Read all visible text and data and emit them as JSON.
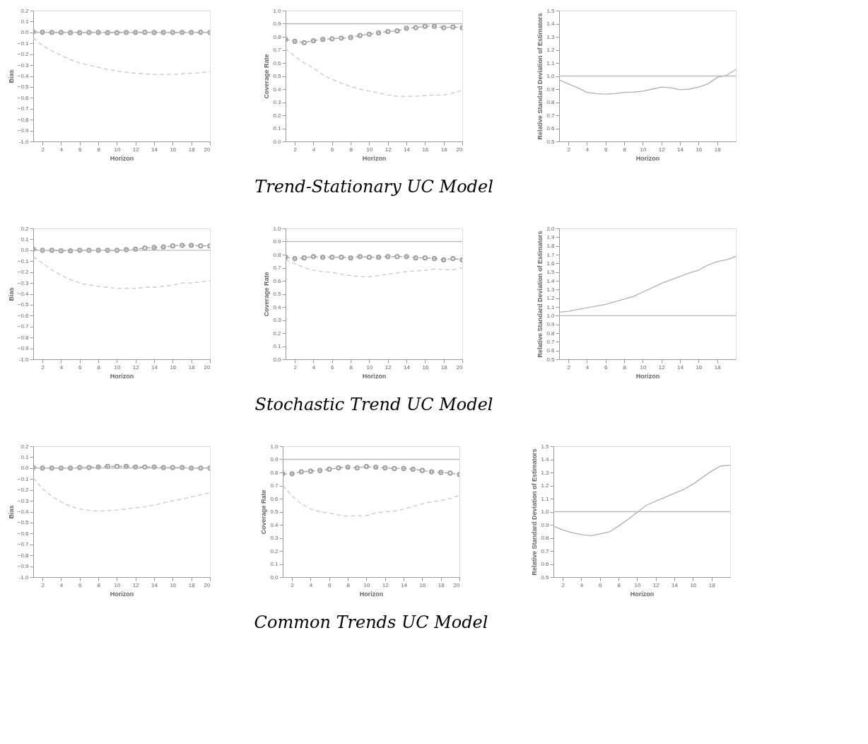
{
  "chart_data": [
    {
      "type": "line",
      "ylabel": "Bias",
      "xlabel": "Horizon",
      "x": [
        1,
        2,
        3,
        4,
        5,
        6,
        7,
        8,
        9,
        10,
        11,
        12,
        13,
        14,
        15,
        16,
        17,
        18,
        19,
        20
      ],
      "xlim": [
        1,
        20
      ],
      "xticks": [
        2,
        4,
        6,
        8,
        10,
        12,
        14,
        16,
        18,
        20
      ],
      "ylim": [
        -1.0,
        0.2
      ],
      "yticks": [
        {
          "value": -1,
          "label": "-1.0"
        },
        -0.9,
        -0.8,
        -0.7,
        -0.6,
        -0.5,
        -0.4,
        -0.3,
        -0.2,
        -0.1,
        {
          "value": 0,
          "label": "0.0"
        },
        0.1,
        0.2
      ],
      "grid": false,
      "series": [
        {
          "color": "#a0a0a0",
          "line_style": "dashed",
          "marker": "circle",
          "values": [
            0.005,
            0.002,
            0,
            0,
            -0.002,
            -0.002,
            0,
            0,
            -0.002,
            -0.002,
            0,
            0,
            0.001,
            -0.001,
            0,
            0,
            0,
            0,
            0.002,
            0
          ]
        },
        {
          "color": "#c8c8c8",
          "line_style": "dashed",
          "marker": "none",
          "values": [
            -0.05,
            -0.12,
            -0.17,
            -0.21,
            -0.25,
            -0.28,
            -0.3,
            -0.32,
            -0.34,
            -0.355,
            -0.365,
            -0.375,
            -0.38,
            -0.385,
            -0.385,
            -0.385,
            -0.38,
            -0.375,
            -0.37,
            -0.36
          ]
        }
      ],
      "ref_lines": [
        {
          "axis": "y",
          "value": 0,
          "color": "#b8b8b8",
          "line_style": "solid"
        }
      ]
    },
    {
      "type": "line",
      "title": "Trend-Stationary UC Model",
      "ylabel": "Coverage Rate",
      "xlabel": "Horizon",
      "x": [
        1,
        2,
        3,
        4,
        5,
        6,
        7,
        8,
        9,
        10,
        11,
        12,
        13,
        14,
        15,
        16,
        17,
        18,
        19,
        20
      ],
      "xlim": [
        1,
        20
      ],
      "xticks": [
        2,
        4,
        6,
        8,
        10,
        12,
        14,
        16,
        18,
        20
      ],
      "ylim": [
        0,
        1.0
      ],
      "yticks": [
        {
          "value": 0,
          "label": "0.0"
        },
        0.1,
        0.2,
        0.3,
        0.4,
        0.5,
        0.6,
        0.7,
        0.8,
        0.9,
        {
          "value": 1,
          "label": "1.0"
        }
      ],
      "grid": false,
      "series": [
        {
          "color": "#a0a0a0",
          "line_style": "dashed",
          "marker": "circle",
          "values": [
            0.78,
            0.765,
            0.755,
            0.77,
            0.78,
            0.785,
            0.79,
            0.795,
            0.81,
            0.82,
            0.83,
            0.84,
            0.845,
            0.865,
            0.87,
            0.88,
            0.88,
            0.87,
            0.875,
            0.87
          ]
        },
        {
          "color": "#c8c8c8",
          "line_style": "dashed",
          "marker": "none",
          "values": [
            0.71,
            0.65,
            0.6,
            0.56,
            0.51,
            0.475,
            0.445,
            0.42,
            0.4,
            0.385,
            0.37,
            0.355,
            0.345,
            0.345,
            0.345,
            0.35,
            0.355,
            0.355,
            0.37,
            0.39
          ]
        }
      ],
      "ref_lines": [
        {
          "axis": "y",
          "value": 0.9,
          "color": "#b8b8b8",
          "line_style": "solid"
        }
      ]
    },
    {
      "type": "line",
      "ylabel": "Relative Standard Deviation of Estimators",
      "xlabel": "Horizon",
      "x": [
        1,
        2,
        3,
        4,
        5,
        6,
        7,
        8,
        9,
        10,
        11,
        12,
        13,
        14,
        15,
        16,
        17,
        18,
        19,
        20
      ],
      "xlim": [
        1,
        20
      ],
      "xticks": [
        2,
        4,
        6,
        8,
        10,
        12,
        14,
        16,
        18
      ],
      "ylim": [
        0.5,
        1.5
      ],
      "yticks": [
        0.5,
        0.6,
        0.7,
        0.8,
        0.9,
        {
          "value": 1,
          "label": "1.0"
        },
        1.1,
        1.2,
        1.3,
        1.4,
        1.5
      ],
      "grid": false,
      "series": [
        {
          "color": "#b0b0b0",
          "line_style": "solid",
          "marker": "none",
          "values": [
            0.97,
            0.94,
            0.91,
            0.875,
            0.865,
            0.862,
            0.865,
            0.875,
            0.877,
            0.885,
            0.9,
            0.915,
            0.91,
            0.895,
            0.9,
            0.915,
            0.94,
            0.99,
            1.005,
            1.05
          ]
        }
      ],
      "ref_lines": [
        {
          "axis": "y",
          "value": 1.0,
          "color": "#b8b8b8",
          "line_style": "solid"
        }
      ]
    },
    {
      "type": "line",
      "ylabel": "Bias",
      "xlabel": "Horizon",
      "x": [
        1,
        2,
        3,
        4,
        5,
        6,
        7,
        8,
        9,
        10,
        11,
        12,
        13,
        14,
        15,
        16,
        17,
        18,
        19,
        20
      ],
      "xlim": [
        1,
        20
      ],
      "xticks": [
        2,
        4,
        6,
        8,
        10,
        12,
        14,
        16,
        18,
        20
      ],
      "ylim": [
        -1.0,
        0.2
      ],
      "yticks": [
        {
          "value": -1,
          "label": "-1.0"
        },
        -0.9,
        -0.8,
        -0.7,
        -0.6,
        -0.5,
        -0.4,
        -0.3,
        -0.2,
        -0.1,
        {
          "value": 0,
          "label": "0.0"
        },
        0.1,
        0.2
      ],
      "grid": false,
      "series": [
        {
          "color": "#a0a0a0",
          "line_style": "dashed",
          "marker": "circle",
          "values": [
            0.01,
            0,
            0,
            -0.005,
            -0.005,
            0,
            0,
            0,
            0,
            0,
            0.005,
            0.01,
            0.02,
            0.025,
            0.03,
            0.04,
            0.045,
            0.045,
            0.04,
            0.04
          ]
        },
        {
          "color": "#c8c8c8",
          "line_style": "dashed",
          "marker": "none",
          "values": [
            -0.06,
            -0.12,
            -0.18,
            -0.23,
            -0.27,
            -0.3,
            -0.32,
            -0.33,
            -0.34,
            -0.35,
            -0.35,
            -0.35,
            -0.34,
            -0.34,
            -0.33,
            -0.32,
            -0.3,
            -0.3,
            -0.29,
            -0.28
          ]
        }
      ],
      "ref_lines": [
        {
          "axis": "y",
          "value": 0,
          "color": "#b8b8b8",
          "line_style": "solid"
        }
      ]
    },
    {
      "type": "line",
      "title": "Stochastic Trend UC Model",
      "ylabel": "Coverage Rate",
      "xlabel": "Horizon",
      "x": [
        1,
        2,
        3,
        4,
        5,
        6,
        7,
        8,
        9,
        10,
        11,
        12,
        13,
        14,
        15,
        16,
        17,
        18,
        19,
        20
      ],
      "xlim": [
        1,
        20
      ],
      "xticks": [
        2,
        4,
        6,
        8,
        10,
        12,
        14,
        16,
        18,
        20
      ],
      "ylim": [
        0,
        1.0
      ],
      "yticks": [
        {
          "value": 0,
          "label": "0.0"
        },
        0.1,
        0.2,
        0.3,
        0.4,
        0.5,
        0.6,
        0.7,
        0.8,
        0.9,
        {
          "value": 1,
          "label": "1.0"
        }
      ],
      "grid": false,
      "series": [
        {
          "color": "#a0a0a0",
          "line_style": "dashed",
          "marker": "circle",
          "values": [
            0.78,
            0.77,
            0.775,
            0.785,
            0.78,
            0.78,
            0.78,
            0.775,
            0.785,
            0.78,
            0.78,
            0.785,
            0.785,
            0.785,
            0.775,
            0.775,
            0.77,
            0.76,
            0.77,
            0.76
          ]
        },
        {
          "color": "#c8c8c8",
          "line_style": "dashed",
          "marker": "none",
          "values": [
            0.76,
            0.73,
            0.7,
            0.68,
            0.67,
            0.665,
            0.65,
            0.64,
            0.63,
            0.63,
            0.64,
            0.65,
            0.66,
            0.67,
            0.675,
            0.68,
            0.69,
            0.685,
            0.685,
            0.7
          ]
        }
      ],
      "ref_lines": [
        {
          "axis": "y",
          "value": 0.9,
          "color": "#b8b8b8",
          "line_style": "solid"
        }
      ]
    },
    {
      "type": "line",
      "ylabel": "Relative Standard Deviation of Estimators",
      "xlabel": "Horizon",
      "x": [
        1,
        2,
        3,
        4,
        5,
        6,
        7,
        8,
        9,
        10,
        11,
        12,
        13,
        14,
        15,
        16,
        17,
        18,
        19,
        20
      ],
      "xlim": [
        1,
        20
      ],
      "xticks": [
        2,
        4,
        6,
        8,
        10,
        12,
        14,
        16,
        18
      ],
      "ylim": [
        0.5,
        2.0
      ],
      "yticks": [
        0.5,
        0.6,
        0.7,
        0.8,
        0.9,
        {
          "value": 1,
          "label": "1.0"
        },
        1.1,
        1.2,
        1.3,
        1.4,
        1.5,
        1.6,
        1.7,
        1.8,
        1.9,
        {
          "value": 2,
          "label": "2.0"
        }
      ],
      "grid": false,
      "series": [
        {
          "color": "#b0b0b0",
          "line_style": "solid",
          "marker": "none",
          "values": [
            1.04,
            1.05,
            1.07,
            1.09,
            1.11,
            1.13,
            1.16,
            1.19,
            1.22,
            1.27,
            1.32,
            1.37,
            1.41,
            1.45,
            1.49,
            1.52,
            1.58,
            1.62,
            1.64,
            1.68
          ]
        }
      ],
      "ref_lines": [
        {
          "axis": "y",
          "value": 1.0,
          "color": "#b8b8b8",
          "line_style": "solid"
        }
      ]
    },
    {
      "type": "line",
      "ylabel": "Bias",
      "xlabel": "Horizon",
      "x": [
        1,
        2,
        3,
        4,
        5,
        6,
        7,
        8,
        9,
        10,
        11,
        12,
        13,
        14,
        15,
        16,
        17,
        18,
        19,
        20
      ],
      "xlim": [
        1,
        20
      ],
      "xticks": [
        2,
        4,
        6,
        8,
        10,
        12,
        14,
        16,
        18,
        20
      ],
      "ylim": [
        -1.0,
        0.2
      ],
      "yticks": [
        {
          "value": -1,
          "label": "-1.0"
        },
        -0.9,
        -0.8,
        -0.7,
        -0.6,
        -0.5,
        -0.4,
        -0.3,
        -0.2,
        -0.1,
        {
          "value": 0,
          "label": "0.0"
        },
        0.1,
        0.2
      ],
      "grid": false,
      "series": [
        {
          "color": "#a0a0a0",
          "line_style": "dashed",
          "marker": "circle",
          "values": [
            0.005,
            0,
            0,
            0,
            0,
            0.005,
            0.005,
            0.01,
            0.015,
            0.015,
            0.015,
            0.01,
            0.01,
            0.01,
            0.005,
            0.005,
            0.005,
            0,
            0,
            0
          ]
        },
        {
          "color": "#c8c8c8",
          "line_style": "dashed",
          "marker": "none",
          "values": [
            -0.09,
            -0.19,
            -0.26,
            -0.31,
            -0.35,
            -0.375,
            -0.39,
            -0.395,
            -0.39,
            -0.385,
            -0.375,
            -0.365,
            -0.355,
            -0.34,
            -0.32,
            -0.3,
            -0.285,
            -0.265,
            -0.245,
            -0.225
          ]
        }
      ],
      "ref_lines": [
        {
          "axis": "y",
          "value": 0,
          "color": "#b8b8b8",
          "line_style": "solid"
        }
      ]
    },
    {
      "type": "line",
      "title": "Common Trends UC Model",
      "ylabel": "Coverage Rate",
      "xlabel": "Horizon",
      "x": [
        1,
        2,
        3,
        4,
        5,
        6,
        7,
        8,
        9,
        10,
        11,
        12,
        13,
        14,
        15,
        16,
        17,
        18,
        19,
        20
      ],
      "xlim": [
        1,
        20
      ],
      "xticks": [
        2,
        4,
        6,
        8,
        10,
        12,
        14,
        16,
        18,
        20
      ],
      "ylim": [
        0,
        1.0
      ],
      "yticks": [
        {
          "value": 0,
          "label": "0.0"
        },
        0.1,
        0.2,
        0.3,
        0.4,
        0.5,
        0.6,
        0.7,
        0.8,
        0.9,
        {
          "value": 1,
          "label": "1.0"
        }
      ],
      "grid": false,
      "series": [
        {
          "color": "#a0a0a0",
          "line_style": "dashed",
          "marker": "circle",
          "values": [
            0.79,
            0.79,
            0.805,
            0.81,
            0.815,
            0.825,
            0.835,
            0.84,
            0.835,
            0.845,
            0.84,
            0.835,
            0.83,
            0.83,
            0.825,
            0.815,
            0.805,
            0.8,
            0.795,
            0.785
          ]
        },
        {
          "color": "#c8c8c8",
          "line_style": "dashed",
          "marker": "none",
          "values": [
            0.7,
            0.62,
            0.56,
            0.52,
            0.5,
            0.49,
            0.475,
            0.465,
            0.47,
            0.47,
            0.49,
            0.5,
            0.505,
            0.52,
            0.54,
            0.56,
            0.575,
            0.585,
            0.6,
            0.625
          ]
        }
      ],
      "ref_lines": [
        {
          "axis": "y",
          "value": 0.9,
          "color": "#b8b8b8",
          "line_style": "solid"
        }
      ]
    },
    {
      "type": "line",
      "ylabel": "Relative Standard Deviation of Estimators",
      "xlabel": "Horizon",
      "x": [
        1,
        2,
        3,
        4,
        5,
        6,
        7,
        8,
        9,
        10,
        11,
        12,
        13,
        14,
        15,
        16,
        17,
        18,
        19,
        20
      ],
      "xlim": [
        1,
        20
      ],
      "xticks": [
        2,
        4,
        6,
        8,
        10,
        12,
        14,
        16,
        18
      ],
      "ylim": [
        0.5,
        1.5
      ],
      "yticks": [
        0.5,
        0.6,
        0.7,
        0.8,
        0.9,
        {
          "value": 1,
          "label": "1.0"
        },
        1.1,
        1.2,
        1.3,
        1.4,
        1.5
      ],
      "grid": false,
      "series": [
        {
          "color": "#b0b0b0",
          "line_style": "solid",
          "marker": "none",
          "values": [
            0.89,
            0.86,
            0.84,
            0.825,
            0.815,
            0.83,
            0.845,
            0.89,
            0.94,
            0.995,
            1.05,
            1.08,
            1.11,
            1.14,
            1.17,
            1.21,
            1.26,
            1.31,
            1.35,
            1.355
          ]
        }
      ],
      "ref_lines": [
        {
          "axis": "y",
          "value": 1.0,
          "color": "#b8b8b8",
          "line_style": "solid"
        }
      ]
    }
  ]
}
